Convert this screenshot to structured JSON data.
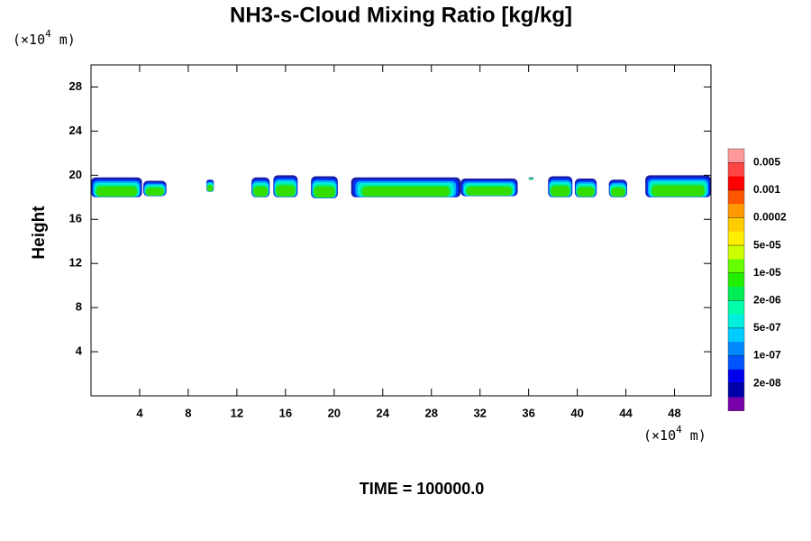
{
  "chart_data": {
    "type": "contour",
    "title": "NH3-s-Cloud Mixing Ratio [kg/kg]",
    "ylabel": "Height",
    "x_unit": {
      "prefix": "(×10",
      "exp": "4",
      "suffix": " m)"
    },
    "y_unit": {
      "prefix": "(×10",
      "exp": "4",
      "suffix": " m)"
    },
    "footer": "TIME = 100000.0",
    "xlim": [
      0,
      51
    ],
    "ylim": [
      0,
      30
    ],
    "xticks": [
      4,
      8,
      12,
      16,
      20,
      24,
      28,
      32,
      36,
      40,
      44,
      48
    ],
    "yticks": [
      4,
      8,
      12,
      16,
      20,
      24,
      28
    ],
    "region_colors": [
      "#1a1aa0",
      "#0033ff",
      "#00aaff",
      "#00eedd",
      "#00ee88",
      "#33dd00"
    ],
    "regions": [
      {
        "x": [
          0,
          4.2
        ],
        "y": [
          18.0,
          19.8
        ]
      },
      {
        "x": [
          4.3,
          6.2
        ],
        "y": [
          18.1,
          19.5
        ]
      },
      {
        "x": [
          9.5,
          10.1
        ],
        "y": [
          18.5,
          19.6
        ]
      },
      {
        "x": [
          13.2,
          14.7
        ],
        "y": [
          18.0,
          19.8
        ]
      },
      {
        "x": [
          15.0,
          17.0
        ],
        "y": [
          18.0,
          20.0
        ]
      },
      {
        "x": [
          18.1,
          20.3
        ],
        "y": [
          17.9,
          19.9
        ]
      },
      {
        "x": [
          21.4,
          30.4
        ],
        "y": [
          18.0,
          19.8
        ]
      },
      {
        "x": [
          30.4,
          35.1
        ],
        "y": [
          18.1,
          19.7
        ]
      },
      {
        "x": [
          36.0,
          36.4
        ],
        "y": [
          19.6,
          19.8
        ]
      },
      {
        "x": [
          37.6,
          39.6
        ],
        "y": [
          18.0,
          19.9
        ]
      },
      {
        "x": [
          39.8,
          41.6
        ],
        "y": [
          18.0,
          19.7
        ]
      },
      {
        "x": [
          42.6,
          44.1
        ],
        "y": [
          18.0,
          19.6
        ]
      },
      {
        "x": [
          45.6,
          51.0
        ],
        "y": [
          18.0,
          20.0
        ]
      }
    ],
    "colorbar": {
      "colors": [
        "#ff9999",
        "#ff4444",
        "#ff0000",
        "#ff5500",
        "#ff9900",
        "#ffcc00",
        "#ffee00",
        "#ccff00",
        "#66ff00",
        "#22ee00",
        "#00ee55",
        "#00ffaa",
        "#00eedd",
        "#00ccff",
        "#0088ff",
        "#0055ff",
        "#0000ee",
        "#0000aa",
        "#7700aa"
      ],
      "ticks": [
        {
          "value": 0.005,
          "label": "0.005"
        },
        {
          "value": 0.001,
          "label": "0.001"
        },
        {
          "value": 0.0002,
          "label": "0.0002"
        },
        {
          "value": 5e-05,
          "label": "5e-05"
        },
        {
          "value": 1e-05,
          "label": "1e-05"
        },
        {
          "value": 2e-06,
          "label": "2e-06"
        },
        {
          "value": 5e-07,
          "label": "5e-07"
        },
        {
          "value": 1e-07,
          "label": "1e-07"
        },
        {
          "value": 2e-08,
          "label": "2e-08"
        }
      ]
    }
  }
}
